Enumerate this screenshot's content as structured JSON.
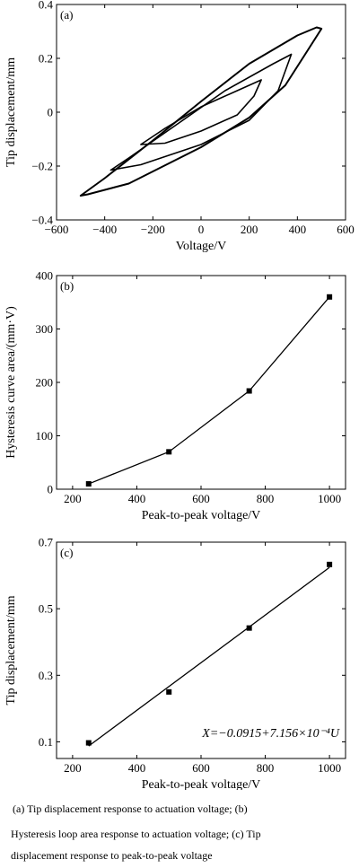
{
  "chart_data": [
    {
      "panel": "(a)",
      "type": "line",
      "xlabel": "Voltage/V",
      "ylabel": "Tip displacement/mm",
      "xlim": [
        -600,
        600
      ],
      "ylim": [
        -0.4,
        0.4
      ],
      "xticks": [
        "−600",
        "−400",
        "−200",
        "0",
        "200",
        "400",
        "600"
      ],
      "yticks": [
        "−0.4",
        "−0.2",
        "0",
        "0.2",
        "0.4"
      ],
      "loops": [
        {
          "amplitude_v": 500,
          "top": [
            [
              -500,
              -0.31
            ],
            [
              -400,
              -0.245
            ],
            [
              -200,
              -0.105
            ],
            [
              0,
              0.04
            ],
            [
              200,
              0.18
            ],
            [
              400,
              0.285
            ],
            [
              480,
              0.315
            ],
            [
              500,
              0.31
            ]
          ],
          "bottom": [
            [
              -500,
              -0.31
            ],
            [
              -470,
              -0.305
            ],
            [
              -300,
              -0.265
            ],
            [
              0,
              -0.13
            ],
            [
              200,
              -0.02
            ],
            [
              350,
              0.1
            ],
            [
              450,
              0.24
            ],
            [
              500,
              0.31
            ]
          ]
        },
        {
          "amplitude_v": 375,
          "top": [
            [
              -375,
              -0.215
            ],
            [
              -300,
              -0.17
            ],
            [
              -100,
              -0.045
            ],
            [
              100,
              0.08
            ],
            [
              300,
              0.18
            ],
            [
              375,
              0.215
            ]
          ],
          "bottom": [
            [
              -375,
              -0.215
            ],
            [
              -250,
              -0.195
            ],
            [
              0,
              -0.12
            ],
            [
              200,
              -0.03
            ],
            [
              320,
              0.08
            ],
            [
              375,
              0.215
            ]
          ]
        },
        {
          "amplitude_v": 250,
          "top": [
            [
              -250,
              -0.12
            ],
            [
              -150,
              -0.06
            ],
            [
              0,
              0.02
            ],
            [
              150,
              0.08
            ],
            [
              250,
              0.12
            ]
          ],
          "bottom": [
            [
              -250,
              -0.12
            ],
            [
              -150,
              -0.115
            ],
            [
              0,
              -0.07
            ],
            [
              150,
              -0.01
            ],
            [
              220,
              0.06
            ],
            [
              250,
              0.12
            ]
          ]
        }
      ]
    },
    {
      "panel": "(b)",
      "type": "line",
      "xlabel": "Peak-to-peak voltage/V",
      "ylabel": "Hysteresis curve area/(mm·V)",
      "xlim": [
        150,
        1050
      ],
      "ylim": [
        0,
        400
      ],
      "xticks": [
        "200",
        "400",
        "600",
        "800",
        "1000"
      ],
      "yticks": [
        "0",
        "100",
        "200",
        "300",
        "400"
      ],
      "x": [
        250,
        500,
        750,
        1000
      ],
      "y": [
        10,
        70,
        184,
        360
      ]
    },
    {
      "panel": "(c)",
      "type": "scatter",
      "xlabel": "Peak-to-peak voltage/V",
      "ylabel": "Tip displacement/mm",
      "xlim": [
        150,
        1050
      ],
      "ylim": [
        0.05,
        0.7
      ],
      "xticks": [
        "200",
        "400",
        "600",
        "800",
        "1000"
      ],
      "yticks": [
        "0.1",
        "0.3",
        "0.5",
        "0.7"
      ],
      "x": [
        250,
        500,
        750,
        1000
      ],
      "y": [
        0.097,
        0.25,
        0.442,
        0.633
      ],
      "fit": {
        "intercept": -0.0915,
        "slope": 0.0007156,
        "equation": "X=−0.0915+7.156×10⁻⁴U"
      }
    }
  ],
  "caption": {
    "line1": "(a) Tip displacement response to actuation voltage; (b)",
    "line2": "Hysteresis loop area response to actuation voltage; (c) Tip",
    "line3": "displacement response to peak-to-peak voltage"
  }
}
